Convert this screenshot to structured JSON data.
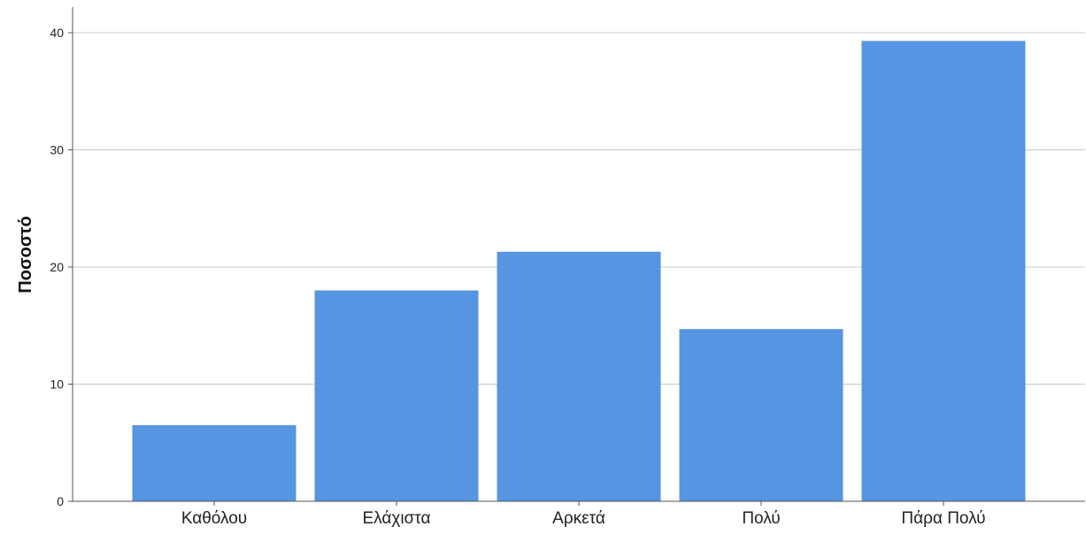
{
  "chart_data": {
    "type": "bar",
    "title": "",
    "xlabel": "",
    "ylabel": "Ποσοστό",
    "categories": [
      "Καθόλου",
      "Ελάχιστα",
      "Αρκετά",
      "Πολύ",
      "Πάρα Πολύ"
    ],
    "values": [
      6.5,
      18.0,
      21.3,
      14.7,
      39.3
    ],
    "ylim": [
      0,
      42
    ],
    "yticks": [
      "0",
      "10",
      "20",
      "30",
      "40"
    ],
    "grid": true,
    "bar_color": "#5595e1"
  }
}
